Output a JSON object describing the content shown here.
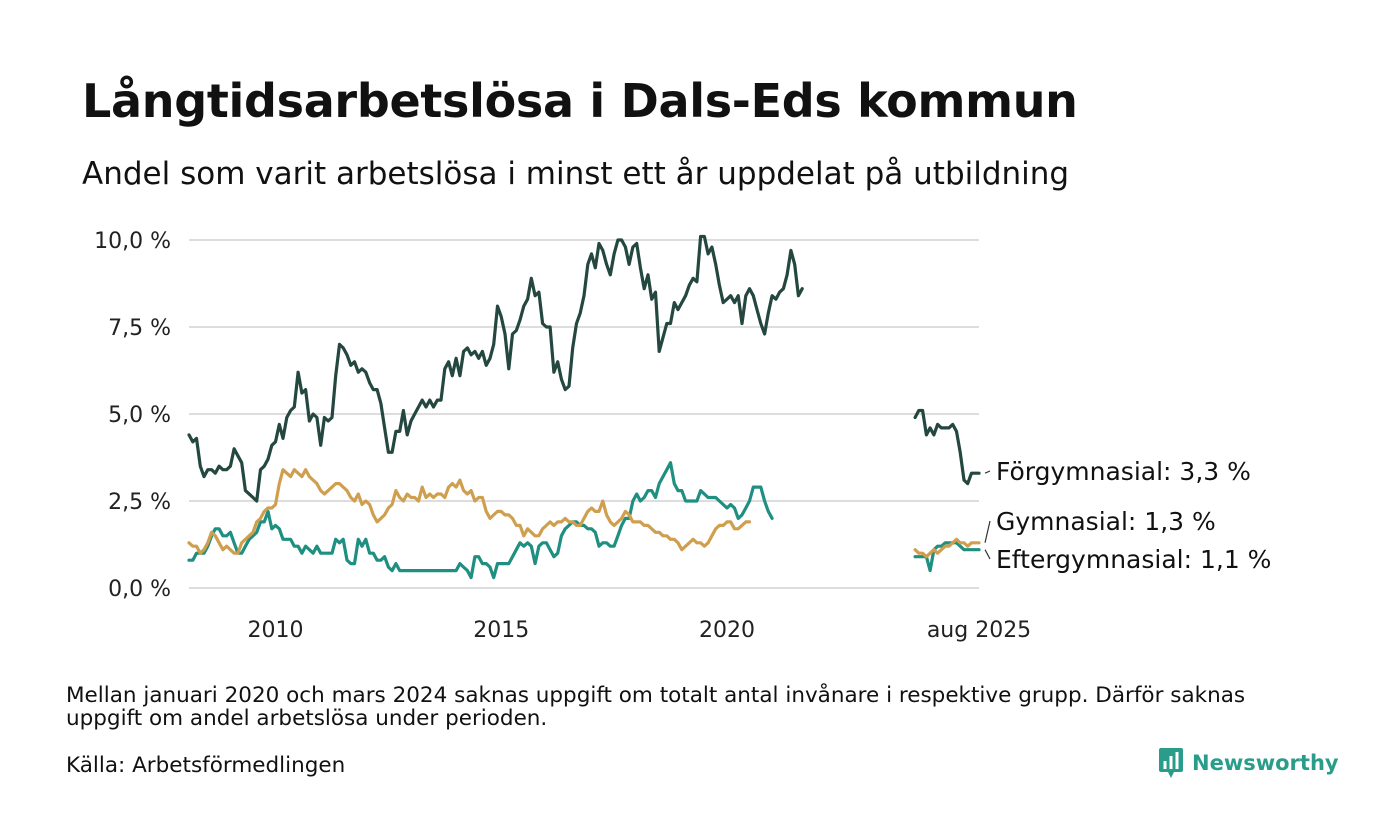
{
  "title": "Långtidsarbetslösa i Dals-Eds kommun",
  "subtitle": "Andel som varit arbetslösa i minst ett år uppdelat på utbildning",
  "note": "Mellan januari 2020 och mars 2024 saknas uppgift om totalt antal invånare i respektive grupp. Därför saknas uppgift om andel arbetslösa under perioden.",
  "source": "Källa: Arbetsförmedlingen",
  "brand": "Newsworthy",
  "colors": {
    "forgymnasial": "#24473f",
    "gymnasial": "#cf9f4f",
    "eftergymnasial": "#1e8f80",
    "grid": "#dddddd",
    "brand": "#2a9d8a"
  },
  "chart_data": {
    "type": "line",
    "ylim": [
      0,
      10
    ],
    "yticks": [
      "0,0 %",
      "2,5 %",
      "5,0 %",
      "7,5 %",
      "10,0 %"
    ],
    "ytick_values": [
      0,
      2.5,
      5,
      7.5,
      10
    ],
    "xticks": [
      "2010",
      "2015",
      "2020",
      "aug 2025"
    ],
    "xtick_values": [
      2010,
      2015,
      2020,
      2025.583
    ],
    "x_start": 2008.083,
    "x_step_months": 1,
    "series": [
      {
        "name": "Förgymnasial",
        "end_label": "Förgymnasial: 3,3 %",
        "color_key": "forgymnasial",
        "segments": [
          {
            "start": 2008.083,
            "values": [
              4.4,
              4.2,
              4.3,
              3.5,
              3.2,
              3.4,
              3.4,
              3.3,
              3.5,
              3.4,
              3.4,
              3.5,
              4.0,
              3.8,
              3.6,
              2.8,
              2.7,
              2.6,
              2.5,
              3.4,
              3.5,
              3.7,
              4.1,
              4.2,
              4.7,
              4.3,
              4.9,
              5.1,
              5.2,
              6.2,
              5.6,
              5.7,
              4.8,
              5.0,
              4.9,
              4.1,
              4.9,
              4.8,
              4.9,
              6.1,
              7.0,
              6.9,
              6.7,
              6.4,
              6.5,
              6.2,
              6.3,
              6.2,
              5.9,
              5.7,
              5.7,
              5.3,
              4.6,
              3.9,
              3.9,
              4.5,
              4.5,
              5.1,
              4.4,
              4.8,
              5.0,
              5.2,
              5.4,
              5.2,
              5.4,
              5.2,
              5.4,
              5.4,
              6.3,
              6.5,
              6.1,
              6.6,
              6.1,
              6.8,
              6.9,
              6.7,
              6.8,
              6.6,
              6.8,
              6.4,
              6.6,
              7.0,
              8.1,
              7.8,
              7.3,
              6.3,
              7.3,
              7.4,
              7.7,
              8.1,
              8.3,
              8.9,
              8.4,
              8.5,
              7.6,
              7.5,
              7.5,
              6.2,
              6.5,
              6.0,
              5.7,
              5.8,
              6.9,
              7.6,
              7.9,
              8.4,
              9.3,
              9.6,
              9.2,
              9.9,
              9.7,
              9.3,
              9.0,
              9.6,
              10.0,
              10.0,
              9.8,
              9.3,
              9.8,
              9.9,
              9.2,
              8.6,
              9.0,
              8.3,
              8.5,
              6.8,
              7.2,
              7.6,
              7.6,
              8.2,
              8.0,
              8.2,
              8.4,
              8.7,
              8.9,
              8.8,
              10.1,
              10.1,
              9.6,
              9.8,
              9.3,
              8.7,
              8.2,
              8.3,
              8.4,
              8.2,
              8.4,
              7.6,
              8.4,
              8.6,
              8.4,
              8.0,
              7.6,
              7.3,
              7.9,
              8.4,
              8.3,
              8.5,
              8.6,
              9.0,
              9.7,
              9.3,
              8.4,
              8.6
            ]
          },
          {
            "start": 2024.167,
            "values": [
              4.9,
              5.1,
              5.1,
              4.4,
              4.6,
              4.4,
              4.7,
              4.6,
              4.6,
              4.6,
              4.7,
              4.5,
              3.9,
              3.1,
              3.0,
              3.3,
              3.3,
              3.3
            ]
          }
        ]
      },
      {
        "name": "Gymnasial",
        "end_label": "Gymnasial: 1,3 %",
        "color_key": "gymnasial",
        "segments": [
          {
            "start": 2008.083,
            "values": [
              1.3,
              1.2,
              1.2,
              1.0,
              1.1,
              1.3,
              1.6,
              1.5,
              1.3,
              1.1,
              1.2,
              1.1,
              1.0,
              1.0,
              1.3,
              1.4,
              1.5,
              1.6,
              1.9,
              2.0,
              2.2,
              2.3,
              2.3,
              2.4,
              3.0,
              3.4,
              3.3,
              3.2,
              3.4,
              3.3,
              3.2,
              3.4,
              3.2,
              3.1,
              3.0,
              2.8,
              2.7,
              2.8,
              2.9,
              3.0,
              3.0,
              2.9,
              2.8,
              2.6,
              2.5,
              2.7,
              2.4,
              2.5,
              2.4,
              2.1,
              1.9,
              2.0,
              2.1,
              2.3,
              2.4,
              2.8,
              2.6,
              2.5,
              2.7,
              2.6,
              2.6,
              2.5,
              2.9,
              2.6,
              2.7,
              2.6,
              2.7,
              2.7,
              2.6,
              2.9,
              3.0,
              2.9,
              3.1,
              2.8,
              2.7,
              2.8,
              2.5,
              2.6,
              2.6,
              2.2,
              2.0,
              2.1,
              2.2,
              2.2,
              2.1,
              2.1,
              2.0,
              1.8,
              1.8,
              1.5,
              1.7,
              1.6,
              1.5,
              1.5,
              1.7,
              1.8,
              1.9,
              1.8,
              1.9,
              1.9,
              2.0,
              1.9,
              1.9,
              1.8,
              1.8,
              2.0,
              2.2,
              2.3,
              2.2,
              2.2,
              2.5,
              2.1,
              1.9,
              1.8,
              1.9,
              2.0,
              2.2,
              2.1,
              1.9,
              1.9,
              1.9,
              1.8,
              1.8,
              1.7,
              1.6,
              1.6,
              1.5,
              1.5,
              1.4,
              1.4,
              1.3,
              1.1,
              1.2,
              1.3,
              1.4,
              1.3,
              1.3,
              1.2,
              1.3,
              1.5,
              1.7,
              1.8,
              1.8,
              1.9,
              1.9,
              1.7,
              1.7,
              1.8,
              1.9,
              1.9
            ]
          },
          {
            "start": 2024.167,
            "values": [
              1.1,
              1.0,
              1.0,
              0.9,
              1.0,
              1.1,
              1.0,
              1.1,
              1.2,
              1.2,
              1.3,
              1.4,
              1.3,
              1.3,
              1.2,
              1.3,
              1.3,
              1.3
            ]
          }
        ]
      },
      {
        "name": "Eftergymnasial",
        "end_label": "Eftergymnasial: 1,1 %",
        "color_key": "eftergymnasial",
        "segments": [
          {
            "start": 2008.083,
            "values": [
              0.8,
              0.8,
              1.0,
              1.0,
              1.0,
              1.2,
              1.5,
              1.7,
              1.7,
              1.5,
              1.5,
              1.6,
              1.3,
              1.0,
              1.0,
              1.2,
              1.4,
              1.5,
              1.6,
              1.9,
              1.9,
              2.2,
              1.7,
              1.8,
              1.7,
              1.4,
              1.4,
              1.4,
              1.2,
              1.2,
              1.0,
              1.2,
              1.1,
              1.0,
              1.2,
              1.0,
              1.0,
              1.0,
              1.0,
              1.4,
              1.3,
              1.4,
              0.8,
              0.7,
              0.7,
              1.4,
              1.2,
              1.4,
              1.0,
              1.0,
              0.8,
              0.8,
              0.9,
              0.6,
              0.5,
              0.7,
              0.5,
              0.5,
              0.5,
              0.5,
              0.5,
              0.5,
              0.5,
              0.5,
              0.5,
              0.5,
              0.5,
              0.5,
              0.5,
              0.5,
              0.5,
              0.5,
              0.7,
              0.6,
              0.5,
              0.3,
              0.9,
              0.9,
              0.7,
              0.7,
              0.6,
              0.3,
              0.7,
              0.7,
              0.7,
              0.7,
              0.9,
              1.1,
              1.3,
              1.2,
              1.3,
              1.2,
              0.7,
              1.2,
              1.3,
              1.3,
              1.1,
              0.9,
              1.0,
              1.5,
              1.7,
              1.8,
              1.9,
              1.9,
              1.8,
              1.8,
              1.7,
              1.7,
              1.6,
              1.2,
              1.3,
              1.3,
              1.2,
              1.2,
              1.5,
              1.8,
              2.0,
              2.0,
              2.5,
              2.7,
              2.5,
              2.6,
              2.8,
              2.8,
              2.6,
              3.0,
              3.2,
              3.4,
              3.6,
              3.0,
              2.8,
              2.8,
              2.5,
              2.5,
              2.5,
              2.5,
              2.8,
              2.7,
              2.6,
              2.6,
              2.6,
              2.5,
              2.4,
              2.3,
              2.4,
              2.3,
              2.0,
              2.1,
              2.3,
              2.5,
              2.9,
              2.9,
              2.9,
              2.5,
              2.2,
              2.0
            ]
          },
          {
            "start": 2024.167,
            "values": [
              0.9,
              0.9,
              0.9,
              0.9,
              0.5,
              1.1,
              1.2,
              1.2,
              1.3,
              1.3,
              1.3,
              1.3,
              1.2,
              1.1,
              1.1,
              1.1,
              1.1,
              1.1
            ]
          }
        ]
      }
    ]
  }
}
